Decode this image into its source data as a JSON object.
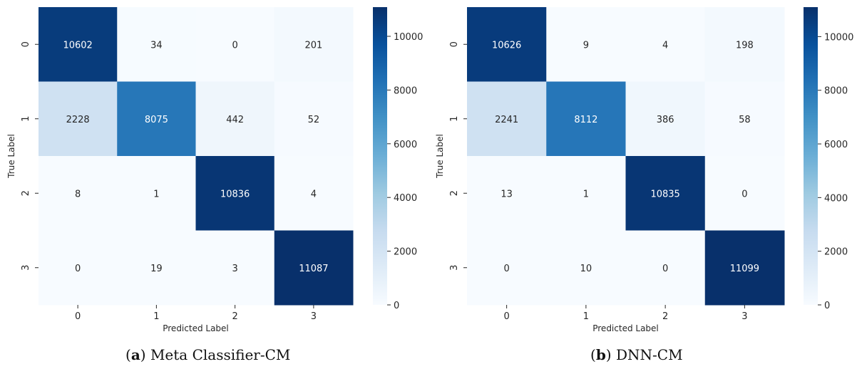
{
  "chart_data": [
    {
      "type": "heatmap",
      "caption_letter": "a",
      "caption_text": "Meta Classifier-CM",
      "xlabel": "Predicted Label",
      "ylabel": "True Label",
      "x_categories": [
        "0",
        "1",
        "2",
        "3"
      ],
      "y_categories": [
        "0",
        "1",
        "2",
        "3"
      ],
      "matrix": [
        [
          10602,
          34,
          0,
          201
        ],
        [
          2228,
          8075,
          442,
          52
        ],
        [
          8,
          1,
          10836,
          4
        ],
        [
          0,
          19,
          3,
          11087
        ]
      ],
      "colorbar": {
        "min": 0,
        "max": 11087,
        "ticks": [
          0,
          2000,
          4000,
          6000,
          8000,
          10000
        ],
        "colormap": "Blues"
      }
    },
    {
      "type": "heatmap",
      "caption_letter": "b",
      "caption_text": "DNN-CM",
      "xlabel": "Predicted Label",
      "ylabel": "True Label",
      "x_categories": [
        "0",
        "1",
        "2",
        "3"
      ],
      "y_categories": [
        "0",
        "1",
        "2",
        "3"
      ],
      "matrix": [
        [
          10626,
          9,
          4,
          198
        ],
        [
          2241,
          8112,
          386,
          58
        ],
        [
          13,
          1,
          10835,
          0
        ],
        [
          0,
          10,
          0,
          11099
        ]
      ],
      "colorbar": {
        "min": 0,
        "max": 11099,
        "ticks": [
          0,
          2000,
          4000,
          6000,
          8000,
          10000
        ],
        "colormap": "Blues"
      }
    }
  ]
}
